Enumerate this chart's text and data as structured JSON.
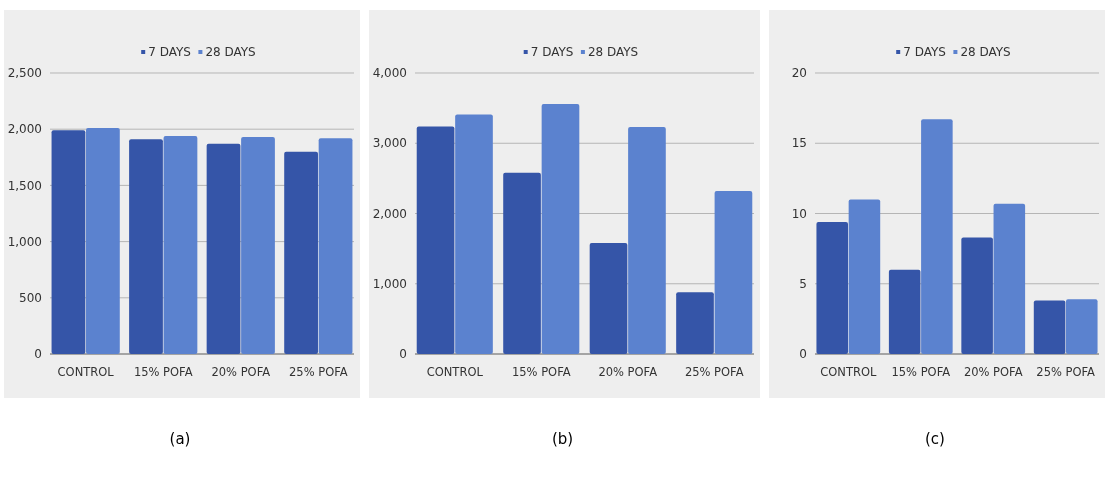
{
  "chart_data": [
    {
      "type": "bar",
      "categories": [
        "CONTROL",
        "15% POFA",
        "20% POFA",
        "25% POFA"
      ],
      "series": [
        {
          "name": "7 DAYS",
          "color": "#3555a8",
          "values": [
            1990,
            1910,
            1870,
            1800
          ]
        },
        {
          "name": "28 DAYS",
          "color": "#5b82cf",
          "values": [
            2010,
            1940,
            1930,
            1920
          ]
        }
      ],
      "ylim": [
        0,
        2500
      ],
      "yticks": [
        0,
        {
          "value": 500,
          "label": "500"
        },
        {
          "value": 1000,
          "label": "1,000"
        },
        {
          "value": 1500,
          "label": "1,500"
        },
        {
          "value": 2000,
          "label": "2,000"
        },
        {
          "value": 2500,
          "label": "2,500"
        }
      ],
      "grid": "y",
      "legend": "top",
      "annotations": [
        "(a)"
      ]
    },
    {
      "type": "bar",
      "categories": [
        "CONTROL",
        "15% POFA",
        "20% POFA",
        "25% POFA"
      ],
      "series": [
        {
          "name": "7 DAYS",
          "color": "#3555a8",
          "values": [
            3240,
            2580,
            1580,
            880
          ]
        },
        {
          "name": "28 DAYS",
          "color": "#5b82cf",
          "values": [
            3410,
            3560,
            3230,
            2320
          ]
        }
      ],
      "ylim": [
        0,
        4000
      ],
      "yticks": [
        0,
        {
          "value": 1000,
          "label": "1,000"
        },
        {
          "value": 2000,
          "label": "2,000"
        },
        {
          "value": 3000,
          "label": "3,000"
        },
        {
          "value": 4000,
          "label": "4,000"
        }
      ],
      "grid": "y",
      "legend": "top",
      "annotations": [
        "(b)"
      ]
    },
    {
      "type": "bar",
      "categories": [
        "CONTROL",
        "15% POFA",
        "20% POFA",
        "25% POFA"
      ],
      "series": [
        {
          "name": "7 DAYS",
          "color": "#3555a8",
          "values": [
            9.4,
            6.0,
            8.3,
            3.8
          ]
        },
        {
          "name": "28 DAYS",
          "color": "#5b82cf",
          "values": [
            11.0,
            16.7,
            10.7,
            3.9
          ]
        }
      ],
      "ylim": [
        0,
        20
      ],
      "yticks": [
        0,
        5,
        10,
        15,
        20
      ],
      "grid": "y",
      "legend": "top",
      "annotations": [
        "(c)"
      ]
    }
  ]
}
